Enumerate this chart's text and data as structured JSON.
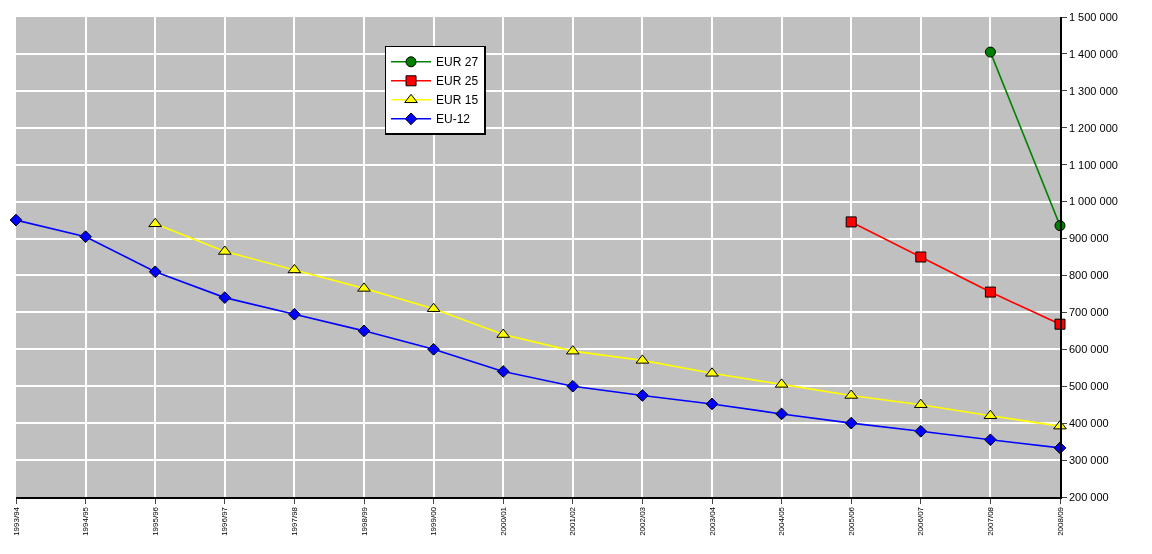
{
  "chart_data": {
    "type": "line",
    "categories": [
      "1993/94",
      "1994/95",
      "1995/96",
      "1996/97",
      "1997/98",
      "1998/99",
      "1999/00",
      "2000/01",
      "2001/02",
      "2002/03",
      "2003/04",
      "2004/05",
      "2005/06",
      "2006/07",
      "2007/08",
      "2008/09"
    ],
    "series": [
      {
        "name": "EUR 27",
        "color": "#008000",
        "marker": "circle",
        "values": [
          null,
          null,
          null,
          null,
          null,
          null,
          null,
          null,
          null,
          null,
          null,
          null,
          null,
          null,
          1405000,
          935000
        ]
      },
      {
        "name": "EUR 25",
        "color": "#ff0000",
        "marker": "square",
        "values": [
          null,
          null,
          null,
          null,
          null,
          null,
          null,
          null,
          null,
          null,
          null,
          null,
          945000,
          850000,
          755000,
          668000
        ]
      },
      {
        "name": "EUR 15",
        "color": "#ffff00",
        "marker": "triangle",
        "values": [
          null,
          null,
          940000,
          865000,
          815000,
          765000,
          710000,
          640000,
          595000,
          570000,
          535000,
          505000,
          475000,
          450000,
          420000,
          392000
        ]
      },
      {
        "name": "EU-12",
        "color": "#0000ff",
        "marker": "diamond",
        "values": [
          950000,
          905000,
          810000,
          740000,
          695000,
          650000,
          600000,
          540000,
          500000,
          475000,
          452000,
          425000,
          400000,
          378000,
          355000,
          333000
        ]
      }
    ],
    "ylim": [
      200000,
      1500000
    ],
    "yticks": [
      {
        "value": 200000,
        "label": "200 000"
      },
      {
        "value": 300000,
        "label": "300 000"
      },
      {
        "value": 400000,
        "label": "400 000"
      },
      {
        "value": 500000,
        "label": "500 000"
      },
      {
        "value": 600000,
        "label": "600 000"
      },
      {
        "value": 700000,
        "label": "700 000"
      },
      {
        "value": 800000,
        "label": "800 000"
      },
      {
        "value": 900000,
        "label": "900 000"
      },
      {
        "value": 1000000,
        "label": "1 000 000"
      },
      {
        "value": 1100000,
        "label": "1 100 000"
      },
      {
        "value": 1200000,
        "label": "1 200 000"
      },
      {
        "value": 1300000,
        "label": "1 300 000"
      },
      {
        "value": 1400000,
        "label": "1 400 000"
      },
      {
        "value": 1500000,
        "label": "1 500 000"
      }
    ],
    "grid": true,
    "legend": "top",
    "line_style": "solid"
  }
}
